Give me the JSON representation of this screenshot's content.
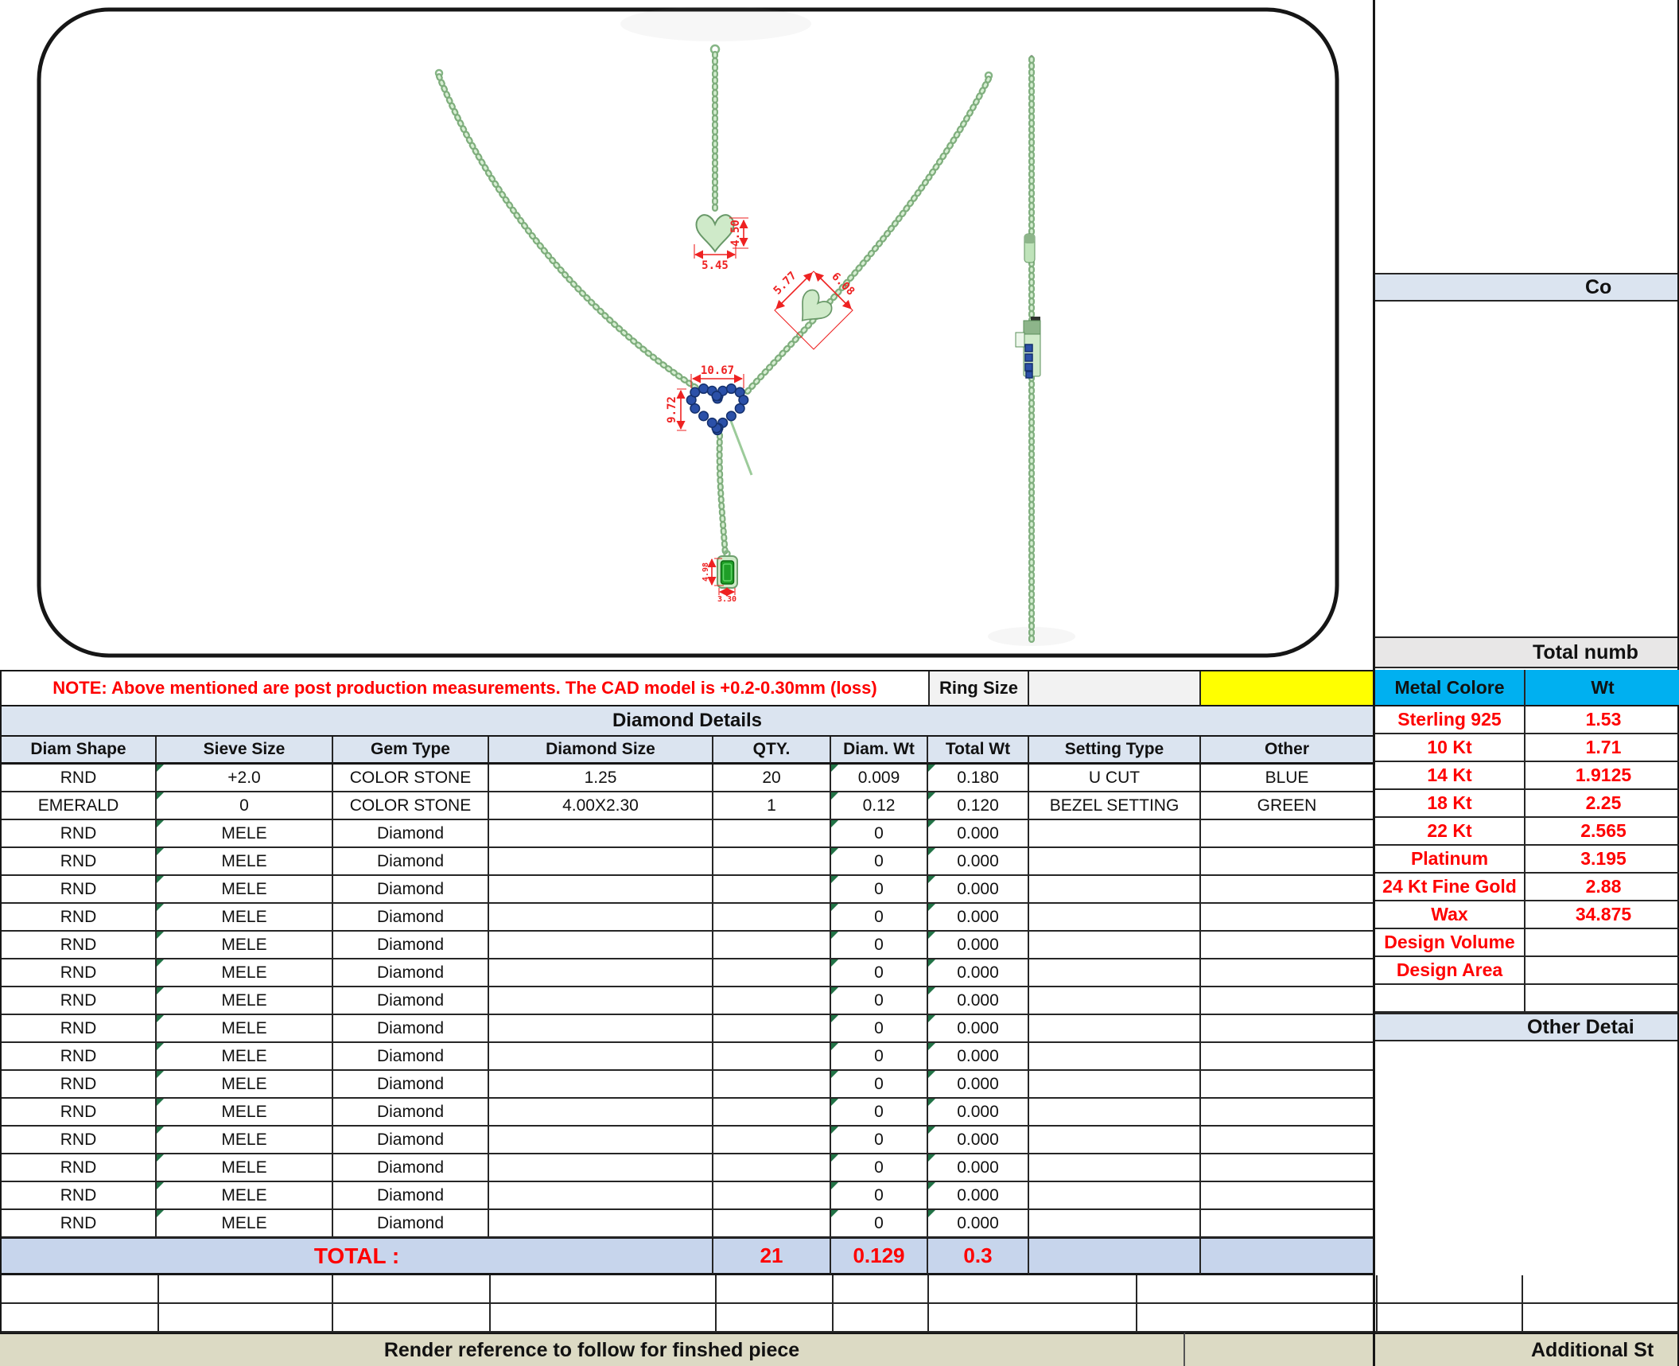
{
  "note": {
    "text": "NOTE: Above mentioned are post production measurements. The CAD model is +0.2-0.30mm (loss)",
    "ring_size_label": "Ring Size",
    "ring_size_value": ""
  },
  "diamond_table": {
    "title": "Diamond Details",
    "headers": [
      "Diam Shape",
      "Sieve Size",
      "Gem Type",
      "Diamond Size",
      "QTY.",
      "Diam. Wt",
      "Total Wt",
      "Setting Type",
      "Other"
    ],
    "rows": [
      {
        "shape": "RND",
        "sieve": "+2.0",
        "gem": "COLOR STONE",
        "size": "1.25",
        "qty": "20",
        "diam_wt": "0.009",
        "total_wt": "0.180",
        "setting": "U CUT",
        "other": "BLUE"
      },
      {
        "shape": "EMERALD",
        "sieve": "0",
        "gem": "COLOR STONE",
        "size": "4.00X2.30",
        "qty": "1",
        "diam_wt": "0.12",
        "total_wt": "0.120",
        "setting": "BEZEL SETTING",
        "other": "GREEN"
      },
      {
        "shape": "RND",
        "sieve": "MELE",
        "gem": "Diamond",
        "size": "",
        "qty": "",
        "diam_wt": "0",
        "total_wt": "0.000",
        "setting": "",
        "other": ""
      },
      {
        "shape": "RND",
        "sieve": "MELE",
        "gem": "Diamond",
        "size": "",
        "qty": "",
        "diam_wt": "0",
        "total_wt": "0.000",
        "setting": "",
        "other": ""
      },
      {
        "shape": "RND",
        "sieve": "MELE",
        "gem": "Diamond",
        "size": "",
        "qty": "",
        "diam_wt": "0",
        "total_wt": "0.000",
        "setting": "",
        "other": ""
      },
      {
        "shape": "RND",
        "sieve": "MELE",
        "gem": "Diamond",
        "size": "",
        "qty": "",
        "diam_wt": "0",
        "total_wt": "0.000",
        "setting": "",
        "other": ""
      },
      {
        "shape": "RND",
        "sieve": "MELE",
        "gem": "Diamond",
        "size": "",
        "qty": "",
        "diam_wt": "0",
        "total_wt": "0.000",
        "setting": "",
        "other": ""
      },
      {
        "shape": "RND",
        "sieve": "MELE",
        "gem": "Diamond",
        "size": "",
        "qty": "",
        "diam_wt": "0",
        "total_wt": "0.000",
        "setting": "",
        "other": ""
      },
      {
        "shape": "RND",
        "sieve": "MELE",
        "gem": "Diamond",
        "size": "",
        "qty": "",
        "diam_wt": "0",
        "total_wt": "0.000",
        "setting": "",
        "other": ""
      },
      {
        "shape": "RND",
        "sieve": "MELE",
        "gem": "Diamond",
        "size": "",
        "qty": "",
        "diam_wt": "0",
        "total_wt": "0.000",
        "setting": "",
        "other": ""
      },
      {
        "shape": "RND",
        "sieve": "MELE",
        "gem": "Diamond",
        "size": "",
        "qty": "",
        "diam_wt": "0",
        "total_wt": "0.000",
        "setting": "",
        "other": ""
      },
      {
        "shape": "RND",
        "sieve": "MELE",
        "gem": "Diamond",
        "size": "",
        "qty": "",
        "diam_wt": "0",
        "total_wt": "0.000",
        "setting": "",
        "other": ""
      },
      {
        "shape": "RND",
        "sieve": "MELE",
        "gem": "Diamond",
        "size": "",
        "qty": "",
        "diam_wt": "0",
        "total_wt": "0.000",
        "setting": "",
        "other": ""
      },
      {
        "shape": "RND",
        "sieve": "MELE",
        "gem": "Diamond",
        "size": "",
        "qty": "",
        "diam_wt": "0",
        "total_wt": "0.000",
        "setting": "",
        "other": ""
      },
      {
        "shape": "RND",
        "sieve": "MELE",
        "gem": "Diamond",
        "size": "",
        "qty": "",
        "diam_wt": "0",
        "total_wt": "0.000",
        "setting": "",
        "other": ""
      },
      {
        "shape": "RND",
        "sieve": "MELE",
        "gem": "Diamond",
        "size": "",
        "qty": "",
        "diam_wt": "0",
        "total_wt": "0.000",
        "setting": "",
        "other": ""
      },
      {
        "shape": "RND",
        "sieve": "MELE",
        "gem": "Diamond",
        "size": "",
        "qty": "",
        "diam_wt": "0",
        "total_wt": "0.000",
        "setting": "",
        "other": ""
      }
    ],
    "total": {
      "label": "TOTAL :",
      "qty": "21",
      "diam_wt": "0.129",
      "total_wt": "0.3"
    }
  },
  "metal_table": {
    "header": {
      "metal": "Metal Colore",
      "wt": "Wt"
    },
    "rows": [
      {
        "label": "Sterling 925",
        "wt": "1.53"
      },
      {
        "label": "10 Kt",
        "wt": "1.71"
      },
      {
        "label": "14 Kt",
        "wt": "1.9125"
      },
      {
        "label": "18 Kt",
        "wt": "2.25"
      },
      {
        "label": "22 Kt",
        "wt": "2.565"
      },
      {
        "label": "Platinum",
        "wt": "3.195"
      },
      {
        "label": "24 Kt Fine Gold",
        "wt": "2.88"
      },
      {
        "label": "Wax",
        "wt": "34.875"
      },
      {
        "label": "Design Volume",
        "wt": ""
      },
      {
        "label": "Design Area",
        "wt": ""
      },
      {
        "label": "",
        "wt": ""
      }
    ]
  },
  "right_panel": {
    "comments_label": "Co",
    "total_number_label": "Total numb",
    "other_details_label": "Other Detai"
  },
  "footer": {
    "render_label": "Render reference to follow for finshed piece",
    "additional_label": "Additional St"
  },
  "drawing": {
    "stone_count": 20,
    "dims": {
      "top_heart_width": "5.45",
      "top_heart_height": "4.50",
      "mid_heart_a": "5.77",
      "mid_heart_b": "6.08",
      "big_heart_width": "10.67",
      "big_heart_height": "9.72",
      "emerald_height": "4.98",
      "emerald_width": "3.30"
    }
  },
  "colors": {
    "accent_cyan": "#00b0f0",
    "highlight_yellow": "#ffff00",
    "band_blue": "#dbe4f0",
    "total_row_blue": "#c7d5ec",
    "footer_olive": "#dcdac4",
    "value_red": "#fe0000",
    "dimension_red": "#ee2222",
    "chain_green": "#7fae7d",
    "stone_blue": "#2b50a8",
    "emerald_green": "#1f9e27"
  }
}
